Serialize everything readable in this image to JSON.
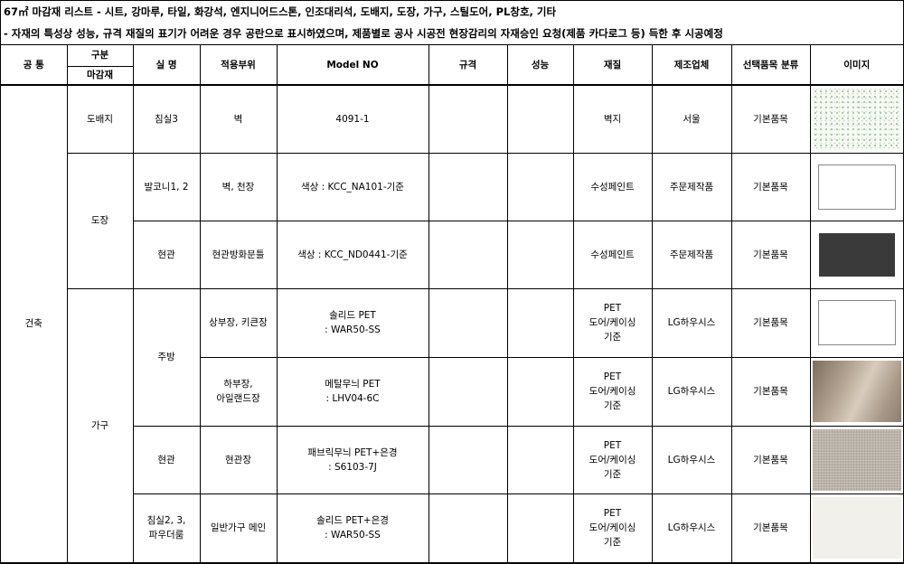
{
  "title_line": "67㎡ 마감재 리스트 - 시트, 강마루, 타일, 화강석, 엔지니어드스톤, 인조대리석, 도배지, 도장, 가구, 스틸도어, PL창호, 기타",
  "note_line": "- 자재의 특성상 성능, 규격 재질의 표기가 어려운 경우 공란으로 표시하였으며, 제품별로 공사 시공전 현장감리의 자재승인 요청(제품 카다로그 등) 득한 후 시공예정",
  "headers": {
    "common": "공 통",
    "category": "구분",
    "finish": "마감재",
    "room": "실 명",
    "area": "적용부위",
    "model": "Model NO",
    "spec": "규격",
    "performance": "성능",
    "material": "재질",
    "maker": "제조업체",
    "option": "선택품목 분류",
    "image": "이미지"
  },
  "common_value": "건축",
  "groups": {
    "wallpaper": "도배지",
    "paint": "도장",
    "furniture": "가구",
    "kitchen": "주방"
  },
  "rows": [
    {
      "room": "침실3",
      "area": "벽",
      "model": [
        "4091-1"
      ],
      "spec": "",
      "performance": "",
      "material": [
        "벽지"
      ],
      "maker": "서울",
      "option": "기본품목",
      "image": "green-dot-wallpaper-texture"
    },
    {
      "room": "발코니1, 2",
      "area": "벽, 천장",
      "model": [
        "색상 : KCC_NA101-기준"
      ],
      "spec": "",
      "performance": "",
      "material": [
        "수성페인트"
      ],
      "maker": "주문제작품",
      "option": "기본품목",
      "image": "white-swatch"
    },
    {
      "room": "현관",
      "area": "현관방화문틀",
      "model": [
        "색상 : KCC_ND0441-기준"
      ],
      "spec": "",
      "performance": "",
      "material": [
        "수성페인트"
      ],
      "maker": "주문제작품",
      "option": "기본품목",
      "image": "dark-gray-swatch"
    },
    {
      "room": "",
      "area": "상부장, 키큰장",
      "model": [
        "솔리드 PET",
        ": WAR50-SS"
      ],
      "spec": "",
      "performance": "",
      "material": [
        "PET",
        "도어/케이싱",
        "기준"
      ],
      "maker": "LG하우시스",
      "option": "기본품목",
      "image": "white-swatch"
    },
    {
      "room": "",
      "area": [
        "하부장,",
        "아일랜드장"
      ],
      "model": [
        "메탈무늬 PET",
        ": LHV04-6C"
      ],
      "spec": "",
      "performance": "",
      "material": [
        "PET",
        "도어/케이싱",
        "기준"
      ],
      "maker": "LG하우시스",
      "option": "기본품목",
      "image": "metallic-beige-swatch"
    },
    {
      "room": "현관",
      "area": "현관장",
      "model": [
        "패브릭무늬 PET+은경",
        ": S6103-7J"
      ],
      "spec": "",
      "performance": "",
      "material": [
        "PET",
        "도어/케이싱",
        "기준"
      ],
      "maker": "LG하우시스",
      "option": "기본품목",
      "image": "fabric-gray-swatch"
    },
    {
      "room": [
        "침실2, 3,",
        "파우더룸"
      ],
      "area": "일반가구 메인",
      "model": [
        "솔리드 PET+은경",
        ": WAR50-SS"
      ],
      "spec": "",
      "performance": "",
      "material": [
        "PET",
        "도어/케이싱",
        "기준"
      ],
      "maker": "LG하우시스",
      "option": "기본품목",
      "image": "cream-white-swatch"
    }
  ]
}
